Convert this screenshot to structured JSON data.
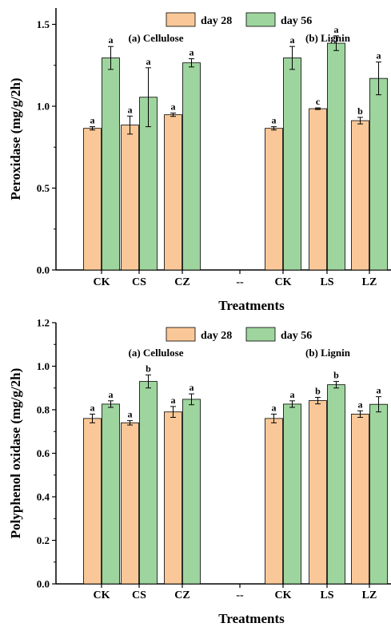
{
  "colors": {
    "day28": "#FAC898",
    "day56": "#9ED59E",
    "stroke": "#000000"
  },
  "chart_data": [
    {
      "type": "bar",
      "ylabel": "Peroxidase (mg/g/2h)",
      "xlabel": "Treatments",
      "ylim": [
        0,
        1.6
      ],
      "yticks": [
        "0.0",
        "0.5",
        "1.0",
        "1.5"
      ],
      "yticks_values": [
        0,
        0.5,
        1.0,
        1.5
      ],
      "categories": [
        "CK",
        "CS",
        "CZ",
        "--",
        "CK",
        "LS",
        "LZ"
      ],
      "group_labels": [
        "(a) Cellulose",
        "(b) Lignin"
      ],
      "legend": {
        "position": "top",
        "entries": [
          "day 28",
          "day 56"
        ]
      },
      "series": [
        {
          "name": "day 28",
          "values": [
            0.865,
            0.885,
            0.948,
            null,
            0.865,
            0.985,
            0.912
          ],
          "errors": [
            0.01,
            0.055,
            0.01,
            null,
            0.01,
            0.005,
            0.02
          ],
          "letters": [
            "a",
            "a",
            "a",
            "",
            "a",
            "c",
            "b"
          ]
        },
        {
          "name": "day 56",
          "values": [
            1.295,
            1.055,
            1.265,
            null,
            1.295,
            1.385,
            1.17
          ],
          "errors": [
            0.07,
            0.18,
            0.025,
            null,
            0.07,
            0.045,
            0.1
          ],
          "letters": [
            "a",
            "a",
            "a",
            "",
            "a",
            "a",
            "a"
          ]
        }
      ]
    },
    {
      "type": "bar",
      "ylabel": "Polyphenol oxidase (mg/g/2h)",
      "xlabel": "Treatments",
      "ylim": [
        0,
        1.2
      ],
      "yticks": [
        "0.0",
        "0.2",
        "0.4",
        "0.6",
        "0.8",
        "1.0",
        "1.2"
      ],
      "yticks_values": [
        0,
        0.2,
        0.4,
        0.6,
        0.8,
        1.0,
        1.2
      ],
      "categories": [
        "CK",
        "CS",
        "CZ",
        "--",
        "CK",
        "LS",
        "LZ"
      ],
      "group_labels": [
        "(a) Cellulose",
        "(b) Lignin"
      ],
      "legend": {
        "position": "top",
        "entries": [
          "day 28",
          "day 56"
        ]
      },
      "series": [
        {
          "name": "day 28",
          "values": [
            0.76,
            0.74,
            0.79,
            null,
            0.76,
            0.842,
            0.78
          ],
          "errors": [
            0.02,
            0.01,
            0.025,
            null,
            0.02,
            0.015,
            0.015
          ],
          "letters": [
            "a",
            "a",
            "a",
            "",
            "a",
            "b",
            "a"
          ]
        },
        {
          "name": "day 56",
          "values": [
            0.826,
            0.93,
            0.848,
            null,
            0.826,
            0.915,
            0.825
          ],
          "errors": [
            0.015,
            0.03,
            0.025,
            null,
            0.015,
            0.015,
            0.035
          ],
          "letters": [
            "a",
            "b",
            "a",
            "",
            "a",
            "b",
            "a"
          ]
        }
      ]
    }
  ]
}
